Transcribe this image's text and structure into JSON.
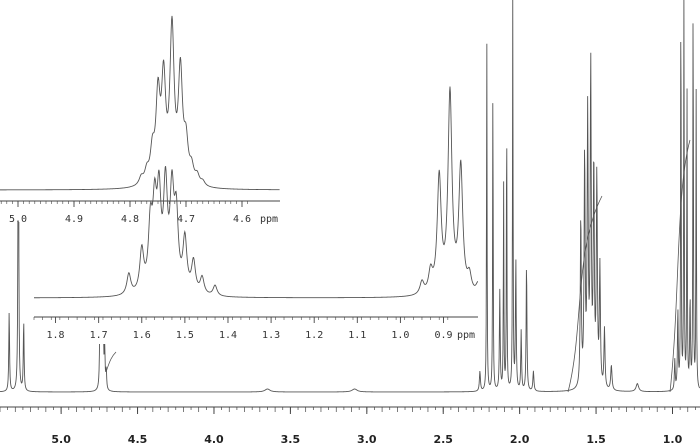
{
  "chart_data": [
    {
      "name": "main-spectrum",
      "type": "line",
      "xlabel": "",
      "ylabel": "",
      "x_reversed": true,
      "xlim": [
        5.4,
        0.82
      ],
      "ticks": [
        "5.0",
        "4.5",
        "4.0",
        "3.5",
        "3.0",
        "2.5",
        "2.0",
        "1.5",
        "1.0"
      ],
      "tick_values": [
        5.0,
        4.5,
        4.0,
        3.5,
        3.0,
        2.5,
        2.0,
        1.5,
        1.0
      ],
      "grid": false,
      "peaks_ppm": [
        5.34,
        5.28,
        5.24,
        4.73,
        4.71,
        2.25,
        2.15,
        2.1,
        2.04,
        2.0,
        1.95,
        1.55,
        1.52,
        1.49,
        0.96,
        0.93,
        0.9,
        0.87,
        0.84
      ],
      "integral_curves": 3
    },
    {
      "name": "inset-4.7",
      "type": "line",
      "x_reversed": true,
      "xlim": [
        5.0,
        4.5
      ],
      "ticks": [
        "5.0",
        "4.9",
        "4.8",
        "4.7",
        "4.6"
      ],
      "tick_values": [
        5.0,
        4.9,
        4.8,
        4.7,
        4.6
      ],
      "unit": "ppm",
      "multiplet": {
        "center_ppm": 4.725,
        "lines_ppm": [
          4.78,
          4.77,
          4.76,
          4.75,
          4.74,
          4.725,
          4.71,
          4.7,
          4.69,
          4.68,
          4.67
        ],
        "rel_heights": [
          0.05,
          0.08,
          0.2,
          0.55,
          0.65,
          1.0,
          0.72,
          0.25,
          0.1,
          0.06,
          0.03
        ]
      },
      "grid": false
    },
    {
      "name": "inset-1.5-0.9",
      "type": "line",
      "x_reversed": true,
      "xlim": [
        1.85,
        0.82
      ],
      "ticks": [
        "1.8",
        "1.7",
        "1.6",
        "1.5",
        "1.4",
        "1.3",
        "1.2",
        "1.1",
        "1.0",
        "0.9"
      ],
      "tick_values": [
        1.8,
        1.7,
        1.6,
        1.5,
        1.4,
        1.3,
        1.2,
        1.1,
        1.0,
        0.9
      ],
      "unit": "ppm",
      "multiplets": [
        {
          "center_ppm": 1.545,
          "lines_ppm": [
            1.63,
            1.6,
            1.58,
            1.57,
            1.56,
            1.545,
            1.53,
            1.52,
            1.5,
            1.48,
            1.46,
            1.43
          ],
          "rel_heights": [
            0.1,
            0.2,
            0.3,
            0.36,
            0.42,
            0.48,
            0.44,
            0.34,
            0.25,
            0.15,
            0.08,
            0.05
          ]
        },
        {
          "center_ppm": 0.885,
          "lines_ppm": [
            0.95,
            0.93,
            0.91,
            0.885,
            0.86,
            0.84,
            0.82
          ],
          "rel_heights": [
            0.06,
            0.1,
            0.55,
            0.95,
            0.6,
            0.08,
            0.05
          ]
        }
      ],
      "grid": false
    }
  ],
  "colors": {
    "trace": "#555555",
    "axis": "#444444",
    "background": "#ffffff"
  }
}
